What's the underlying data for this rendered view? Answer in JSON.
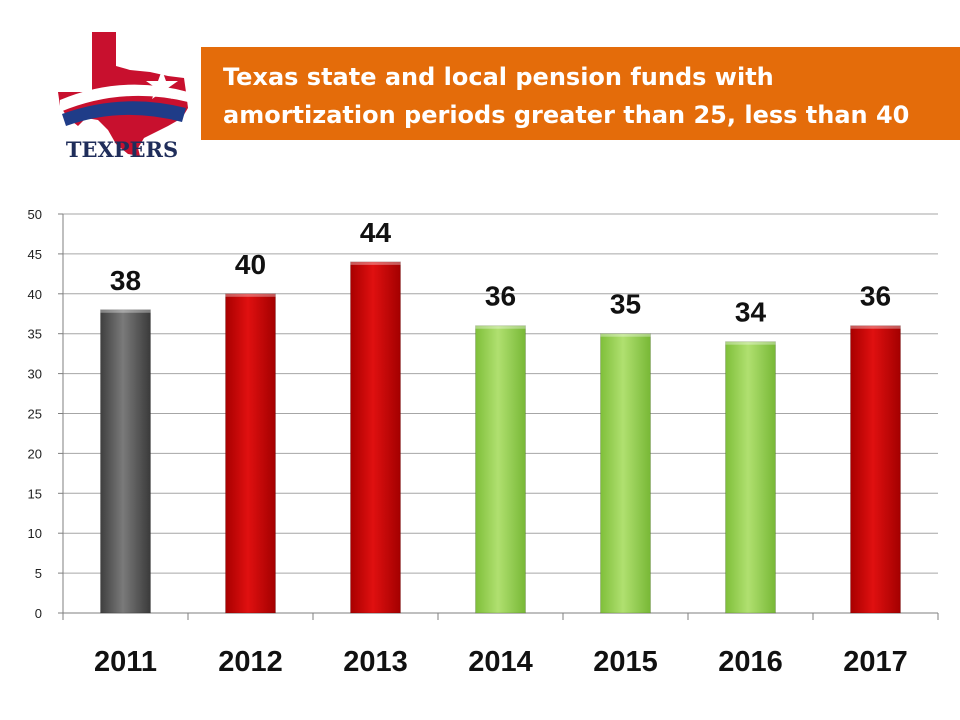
{
  "logo": {
    "text": "TEXPERS"
  },
  "title": {
    "line1": "Texas state and local pension funds with",
    "line2": "amortization periods greater than 25, less than 40"
  },
  "colors": {
    "title_bg": "#e46c0a",
    "gray": "#555555",
    "red": "#cc0000",
    "green": "#92d050",
    "grid": "#a6a6a6"
  },
  "chart_data": {
    "type": "bar",
    "categories": [
      "2011",
      "2012",
      "2013",
      "2014",
      "2015",
      "2016",
      "2017"
    ],
    "values": [
      38,
      40,
      44,
      36,
      35,
      34,
      36
    ],
    "bar_colors": [
      "gray",
      "red",
      "red",
      "green",
      "green",
      "green",
      "red"
    ],
    "ylim": [
      0,
      50
    ],
    "yticks": [
      0,
      5,
      10,
      15,
      20,
      25,
      30,
      35,
      40,
      45,
      50
    ],
    "grid": true,
    "data_labels": true,
    "title": "",
    "xlabel": "",
    "ylabel": ""
  }
}
